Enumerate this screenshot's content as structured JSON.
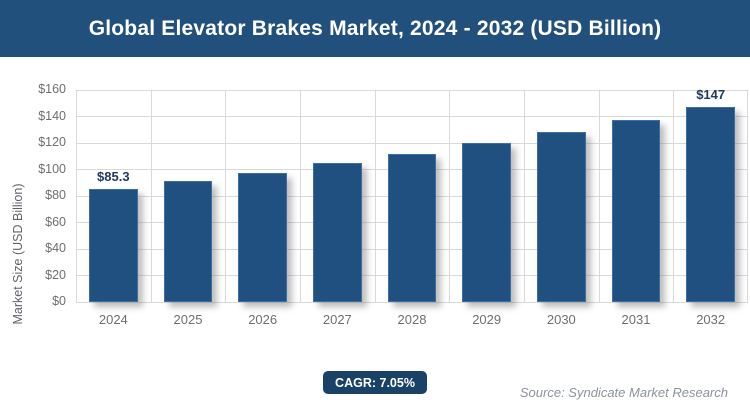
{
  "header": {
    "title": "Global Elevator Brakes Market, 2024 - 2032 (USD Billion)"
  },
  "chart_data": {
    "type": "bar",
    "title": "Global Elevator Brakes Market, 2024 - 2032 (USD Billion)",
    "categories": [
      "2024",
      "2025",
      "2026",
      "2027",
      "2028",
      "2029",
      "2030",
      "2031",
      "2032"
    ],
    "values": [
      85.3,
      91.3,
      97.7,
      104.6,
      112.0,
      119.9,
      128.4,
      137.4,
      147.0
    ],
    "bar_labels": [
      "$85.3",
      "",
      "",
      "",
      "",
      "",
      "",
      "",
      "$147"
    ],
    "xlabel": "",
    "ylabel": "Market Size (USD Billion)",
    "ylim": [
      0,
      160
    ],
    "ytick_step": 20,
    "ytick_labels": [
      "$0",
      "$20",
      "$40",
      "$60",
      "$80",
      "$100",
      "$120",
      "$140",
      "$160"
    ],
    "grid": true,
    "legend": "none"
  },
  "footer": {
    "cagr_label": "CAGR: 7.05%",
    "source": "Source: Syndicate Market Research"
  },
  "colors": {
    "banner": "#21507D",
    "bar": "#1F5080",
    "bar_border": "#3B6FA5",
    "badge": "#1A4266",
    "data_label": "#203864",
    "gridline": "#d9d9d9",
    "axis_text": "#6e6e6e",
    "source_text": "#8b929c"
  }
}
